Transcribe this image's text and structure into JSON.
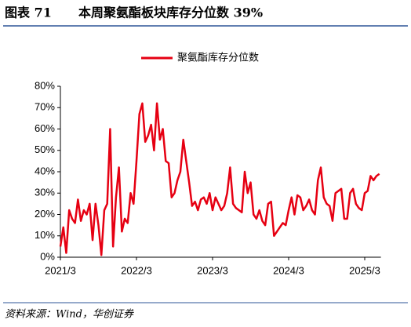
{
  "figure_label": "图表 71",
  "source": "资料来源：Wind，华创证券",
  "chart_data": {
    "type": "line",
    "title": "本周聚氨酯板块库存分位数 39%",
    "categories": [
      "2021/3",
      null,
      null,
      null,
      null,
      null,
      null,
      null,
      null,
      null,
      null,
      null,
      null,
      null,
      null,
      null,
      null,
      null,
      null,
      null,
      null,
      null,
      null,
      null,
      null,
      null,
      "2022/3",
      null,
      null,
      null,
      null,
      null,
      null,
      null,
      null,
      null,
      null,
      null,
      null,
      null,
      null,
      null,
      null,
      null,
      null,
      null,
      null,
      null,
      null,
      null,
      null,
      null,
      "2023/3",
      null,
      null,
      null,
      null,
      null,
      null,
      null,
      null,
      null,
      null,
      null,
      null,
      null,
      null,
      null,
      null,
      null,
      null,
      null,
      null,
      null,
      null,
      null,
      null,
      null,
      "2024/3",
      null,
      null,
      null,
      null,
      null,
      null,
      null,
      null,
      null,
      null,
      null,
      null,
      null,
      null,
      null,
      null,
      null,
      null,
      null,
      null,
      null,
      null,
      null,
      null,
      null,
      "2025/3",
      null,
      null,
      null,
      null,
      null
    ],
    "series": [
      {
        "name": "聚氨酯库存分位数",
        "color": "#e60012",
        "values": [
          5,
          14,
          2,
          22,
          18,
          16,
          27,
          17,
          22,
          20,
          25,
          8,
          25,
          15,
          1,
          22,
          25,
          60,
          5,
          28,
          42,
          12,
          18,
          16,
          30,
          25,
          45,
          67,
          72,
          54,
          57,
          62,
          50,
          72,
          55,
          60,
          45,
          44,
          28,
          30,
          36,
          40,
          55,
          45,
          35,
          24,
          26,
          22,
          27,
          28,
          25,
          30,
          22,
          28,
          25,
          22,
          24,
          30,
          42,
          25,
          23,
          22,
          21,
          40,
          30,
          35,
          20,
          18,
          22,
          17,
          15,
          25,
          26,
          10,
          12,
          14,
          16,
          15,
          22,
          28,
          20,
          29,
          28,
          22,
          24,
          27,
          22,
          20,
          36,
          42,
          28,
          25,
          24,
          17,
          30,
          31,
          32,
          18,
          18,
          30,
          32,
          25,
          23,
          22,
          30,
          31,
          38,
          36,
          38,
          39
        ]
      }
    ],
    "ylim": [
      0,
      80
    ],
    "yticks": [
      {
        "value": 0,
        "label": "0%"
      },
      {
        "value": 10,
        "label": "10%"
      },
      {
        "value": 20,
        "label": "20%"
      },
      {
        "value": 30,
        "label": "30%"
      },
      {
        "value": 40,
        "label": "40%"
      },
      {
        "value": 50,
        "label": "50%"
      },
      {
        "value": 60,
        "label": "60%"
      },
      {
        "value": 70,
        "label": "70%"
      },
      {
        "value": 80,
        "label": "80%"
      }
    ],
    "legend": "top",
    "grid": false
  }
}
